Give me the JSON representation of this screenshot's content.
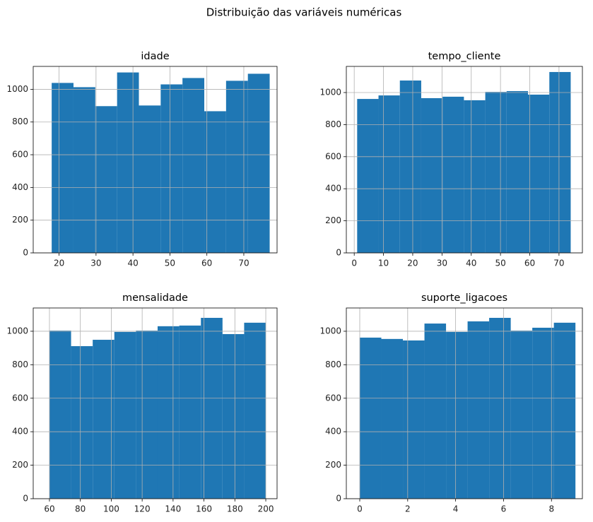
{
  "title": "Distribuição das variáveis numéricas",
  "chart_data": [
    {
      "type": "histogram",
      "title": "idade",
      "color": "#1f77b4",
      "grid": true,
      "bins": [
        18,
        23.9,
        29.8,
        35.7,
        41.6,
        47.5,
        53.4,
        59.3,
        65.2,
        71.1,
        77
      ],
      "values": [
        1039,
        1013,
        897,
        1103,
        901,
        1030,
        1069,
        866,
        1052,
        1095
      ],
      "xlim": [
        13,
        79
      ],
      "xticks": [
        20,
        30,
        40,
        50,
        60,
        70
      ],
      "ylim": [
        0,
        1140
      ],
      "yticks": [
        0,
        200,
        400,
        600,
        800,
        1000
      ]
    },
    {
      "type": "histogram",
      "title": "tempo_cliente",
      "color": "#1f77b4",
      "grid": true,
      "bins": [
        1,
        8.3,
        15.6,
        22.9,
        30.2,
        37.5,
        44.8,
        52.1,
        59.4,
        66.7,
        74
      ],
      "values": [
        960,
        982,
        1075,
        965,
        974,
        952,
        1004,
        1009,
        987,
        1128
      ],
      "xlim": [
        -2.7,
        78
      ],
      "xticks": [
        0,
        10,
        20,
        30,
        40,
        50,
        60,
        70
      ],
      "ylim": [
        0,
        1163
      ],
      "yticks": [
        0,
        200,
        400,
        600,
        800,
        1000
      ]
    },
    {
      "type": "histogram",
      "title": "mensalidade",
      "color": "#1f77b4",
      "grid": true,
      "bins": [
        60,
        74,
        88,
        102,
        116,
        130,
        144,
        158,
        172,
        186,
        200
      ],
      "values": [
        1004,
        911,
        949,
        996,
        1004,
        1030,
        1034,
        1080,
        983,
        1051
      ],
      "xlim": [
        49.5,
        207.3
      ],
      "xticks": [
        60,
        80,
        100,
        120,
        140,
        160,
        180,
        200
      ],
      "ylim": [
        0,
        1139
      ],
      "yticks": [
        0,
        200,
        400,
        600,
        800,
        1000
      ]
    },
    {
      "type": "histogram",
      "title": "suporte_ligacoes",
      "color": "#1f77b4",
      "grid": true,
      "bins": [
        0,
        0.9,
        1.8,
        2.7,
        3.6,
        4.5,
        5.4,
        6.3,
        7.2,
        8.1,
        9
      ],
      "values": [
        962,
        954,
        945,
        1046,
        996,
        1059,
        1080,
        1004,
        1021,
        1051
      ],
      "xlim": [
        -0.56,
        9.29
      ],
      "xticks": [
        0,
        2,
        4,
        6,
        8
      ],
      "ylim": [
        0,
        1139
      ],
      "yticks": [
        0,
        200,
        400,
        600,
        800,
        1000
      ]
    }
  ]
}
